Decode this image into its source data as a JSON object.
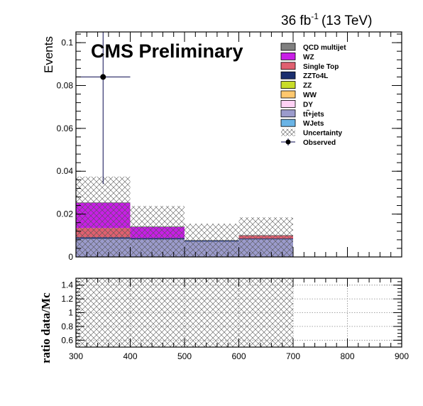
{
  "lumi_label": {
    "value": "36 fb",
    "exponent": "-1",
    "energy": "(13 TeV)"
  },
  "cms_label": "CMS Preliminary",
  "colors": {
    "QCD multijet": "#7f7f7f",
    "WZ": "#c81ee6",
    "Single Top": "#e06070",
    "ZZTo4L": "#1a2e6e",
    "ZZ": "#c8dc28",
    "WW": "#ffc86e",
    "DY": "#ffd2f5",
    "tt+jets": "#9b9bcc",
    "WJets": "#6ab4e6",
    "observed": "#0a0a50"
  },
  "chart_data": [
    {
      "type": "bar",
      "subtype": "stacked-histogram",
      "ylabel": "Events",
      "xlim": [
        300,
        900
      ],
      "ylim": [
        0,
        0.105
      ],
      "yticks": [
        0,
        0.02,
        0.04,
        0.06,
        0.08,
        0.1
      ],
      "ytick_labels": [
        "0",
        "0.02",
        "0.04",
        "0.06",
        "0.08",
        "0.1"
      ],
      "bin_edges": [
        300,
        400,
        500,
        600,
        700,
        800,
        900
      ],
      "series": [
        {
          "name": "tt̄+jets",
          "legend_main": "tt",
          "legend_suffix": "+jets",
          "color_key": "tt+jets",
          "values": [
            0.0085,
            0.0082,
            0.0072,
            0.0082,
            0,
            0
          ]
        },
        {
          "name": "ZZTo4L",
          "color_key": "ZZTo4L",
          "values": [
            0.0007,
            0.0006,
            0.0005,
            0.0004,
            0,
            0
          ]
        },
        {
          "name": "Single Top",
          "color_key": "Single Top",
          "values": [
            0.0043,
            0.0,
            0.0,
            0.0014,
            0,
            0
          ]
        },
        {
          "name": "WZ",
          "color_key": "WZ",
          "values": [
            0.0118,
            0.0052,
            0.0,
            0.0,
            0,
            0
          ]
        },
        {
          "name": "WJets",
          "color_key": "WJets",
          "values": [
            0,
            0,
            0,
            0,
            0,
            0
          ]
        },
        {
          "name": "DY",
          "color_key": "DY",
          "values": [
            0,
            0,
            0,
            0,
            0,
            0
          ]
        },
        {
          "name": "WW",
          "color_key": "WW",
          "values": [
            0,
            0,
            0,
            0,
            0,
            0
          ]
        },
        {
          "name": "ZZ",
          "color_key": "ZZ",
          "values": [
            0,
            0,
            0,
            0,
            0,
            0
          ]
        },
        {
          "name": "QCD multijet",
          "color_key": "QCD multijet",
          "values": [
            0,
            0,
            0,
            0,
            0,
            0
          ]
        }
      ],
      "uncertainty_band": [
        {
          "x0": 300,
          "x1": 400,
          "low": 0.0,
          "high": 0.0375
        },
        {
          "x0": 400,
          "x1": 500,
          "low": 0.0,
          "high": 0.0238
        },
        {
          "x0": 500,
          "x1": 600,
          "low": 0.0,
          "high": 0.0155
        },
        {
          "x0": 600,
          "x1": 700,
          "low": 0.0,
          "high": 0.0185
        }
      ],
      "observed": [
        {
          "x": 350,
          "xerr": 50,
          "y": 0.084,
          "y_low": 0.034,
          "y_high": 0.105
        }
      ],
      "legend": {
        "placement": "top-right",
        "order": [
          "QCD multijet",
          "WZ",
          "Single Top",
          "ZZTo4L",
          "ZZ",
          "WW",
          "DY",
          "tt+jets",
          "WJets",
          "Uncertainty",
          "Observed"
        ],
        "labels": {
          "QCD multijet": "QCD multijet",
          "WZ": "WZ",
          "Single Top": "Single Top",
          "ZZTo4L": "ZZTo4L",
          "ZZ": "ZZ",
          "WW": "WW",
          "DY": "DY",
          "WJets": "WJets",
          "Uncertainty": "Uncertainty",
          "Observed": "Observed"
        }
      }
    },
    {
      "type": "area",
      "subtype": "ratio-panel",
      "ylabel": "ratio data/Mc",
      "xlim": [
        300,
        900
      ],
      "ylim": [
        0.5,
        1.5
      ],
      "xticks": [
        300,
        400,
        500,
        600,
        700,
        800,
        900
      ],
      "xtick_labels": [
        "300",
        "400",
        "500",
        "600",
        "700",
        "800",
        "900"
      ],
      "yticks": [
        0.6,
        0.8,
        1.0,
        1.2,
        1.4
      ],
      "ytick_labels": [
        "0.6",
        "0.8",
        "1",
        "1.2",
        "1.4"
      ],
      "grid": true,
      "uncertainty_band": [
        {
          "x0": 300,
          "x1": 700,
          "low": 0.5,
          "high": 1.5
        }
      ]
    }
  ]
}
